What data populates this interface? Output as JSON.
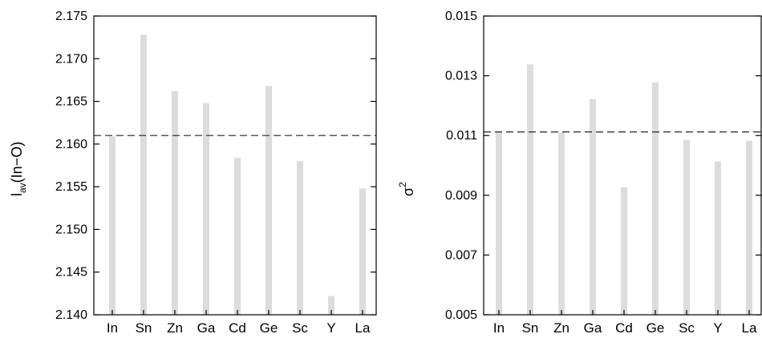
{
  "chart_data": [
    {
      "type": "bar",
      "categories": [
        "In",
        "Sn",
        "Zn",
        "Ga",
        "Cd",
        "Ge",
        "Sc",
        "Y",
        "La"
      ],
      "values": [
        2.1609,
        2.1728,
        2.1662,
        2.1648,
        2.1584,
        2.1668,
        2.158,
        2.1422,
        2.1548
      ],
      "ylabel_main": "l",
      "ylabel_sub": "av",
      "ylabel_rest": "(In−O)",
      "ylim": [
        2.14,
        2.175
      ],
      "yticks": [
        2.14,
        2.145,
        2.15,
        2.155,
        2.16,
        2.165,
        2.17,
        2.175
      ],
      "ytick_labels": [
        "2.140",
        "2.145",
        "2.150",
        "2.155",
        "2.160",
        "2.165",
        "2.170",
        "2.175"
      ],
      "reference_line": 2.161,
      "bar_color": "#dcdcdc",
      "grid": false
    },
    {
      "type": "bar",
      "categories": [
        "In",
        "Sn",
        "Zn",
        "Ga",
        "Cd",
        "Ge",
        "Sc",
        "Y",
        "La"
      ],
      "values": [
        0.0111,
        0.01338,
        0.0111,
        0.01222,
        0.00926,
        0.01278,
        0.01085,
        0.01013,
        0.01082
      ],
      "ylabel_main": "σ",
      "ylabel_sup": "2",
      "ylim": [
        0.005,
        0.015
      ],
      "yticks": [
        0.005,
        0.007,
        0.009,
        0.011,
        0.013,
        0.015
      ],
      "ytick_labels": [
        "0.005",
        "0.007",
        "0.009",
        "0.011",
        "0.013",
        "0.015"
      ],
      "reference_line": 0.01112,
      "bar_color": "#dcdcdc",
      "grid": false
    }
  ]
}
